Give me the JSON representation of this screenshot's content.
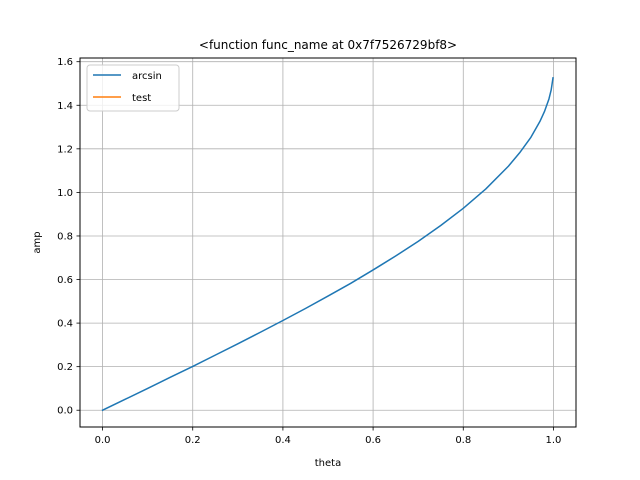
{
  "chart_data": {
    "type": "line",
    "title": "<function func_name at 0x7f7526729bf8>",
    "xlabel": "theta",
    "ylabel": "amp",
    "xlim": [
      -0.05,
      1.05
    ],
    "ylim": [
      -0.077,
      1.617
    ],
    "xticks": [
      0.0,
      0.2,
      0.4,
      0.6,
      0.8,
      1.0
    ],
    "xtick_labels": [
      "0.0",
      "0.2",
      "0.4",
      "0.6",
      "0.8",
      "1.0"
    ],
    "yticks": [
      0.0,
      0.2,
      0.4,
      0.6,
      0.8,
      1.0,
      1.2,
      1.4,
      1.6
    ],
    "ytick_labels": [
      "0.0",
      "0.2",
      "0.4",
      "0.6",
      "0.8",
      "1.0",
      "1.2",
      "1.4",
      "1.6"
    ],
    "grid": true,
    "legend_position": "upper-left",
    "series": [
      {
        "name": "arcsin",
        "color": "#1f77b4",
        "x": [
          0.0,
          0.05,
          0.1,
          0.15,
          0.2,
          0.25,
          0.3,
          0.35,
          0.4,
          0.45,
          0.5,
          0.55,
          0.6,
          0.65,
          0.7,
          0.75,
          0.8,
          0.85,
          0.9,
          0.925,
          0.95,
          0.97,
          0.98,
          0.99,
          0.995,
          0.999
        ],
        "y": [
          0.0,
          0.05,
          0.1,
          0.151,
          0.201,
          0.253,
          0.305,
          0.358,
          0.412,
          0.467,
          0.524,
          0.582,
          0.644,
          0.708,
          0.775,
          0.848,
          0.927,
          1.016,
          1.12,
          1.182,
          1.253,
          1.326,
          1.371,
          1.429,
          1.471,
          1.526
        ]
      },
      {
        "name": "test",
        "color": "#ff7f0e",
        "x": [],
        "y": []
      }
    ]
  }
}
